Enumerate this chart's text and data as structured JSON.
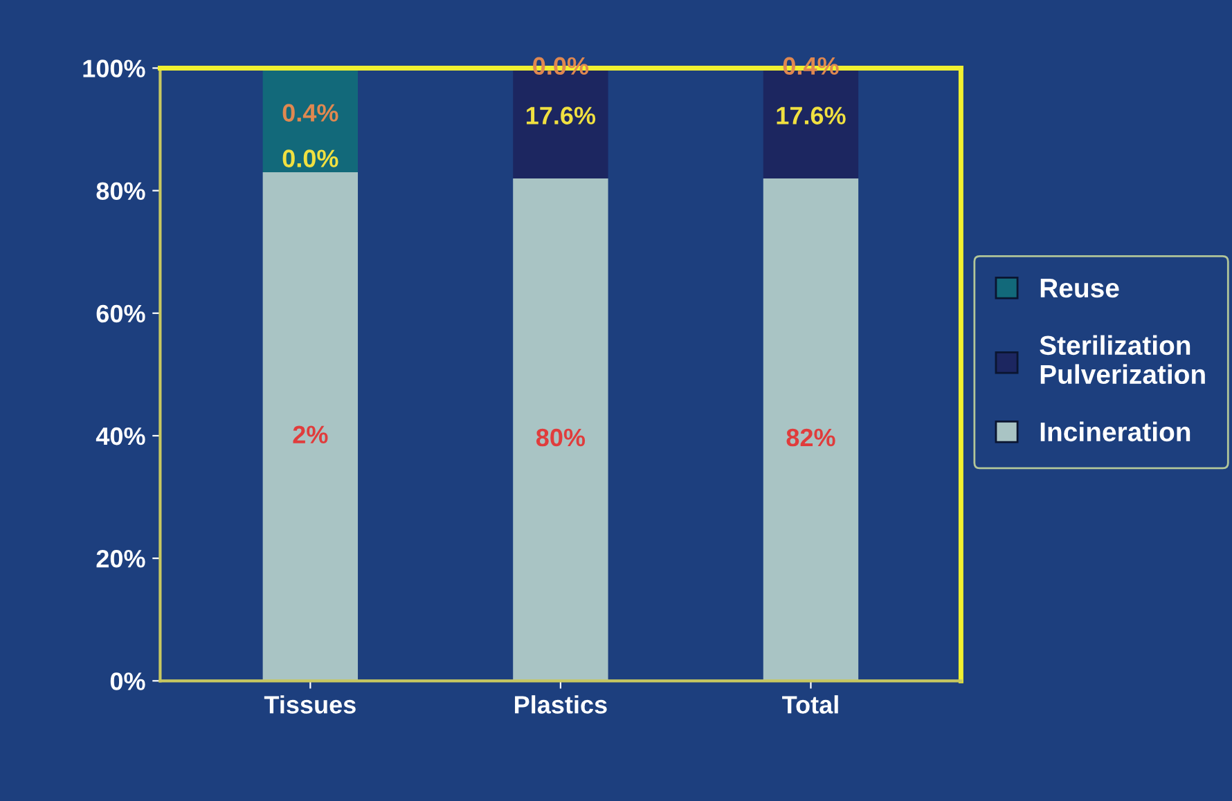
{
  "chart_data": {
    "type": "bar",
    "stacked": true,
    "categories": [
      "Tissues",
      "Plastics",
      "Total"
    ],
    "series": [
      {
        "name": "Incineration",
        "color": "#a9c4c4",
        "values": [
          83,
          82,
          82
        ]
      },
      {
        "name": "Sterilization\nPulverization",
        "color": "#1c2660",
        "values": [
          0,
          18,
          18
        ]
      },
      {
        "name": "Reuse",
        "color": "#12697a",
        "values": [
          17,
          0,
          0
        ]
      }
    ],
    "annotations": [
      "2%",
      "0.0%",
      "0.4%",
      "80%",
      "17.6%",
      "0.0%",
      "82%",
      "17.6%",
      "0.4%"
    ],
    "ylim": [
      0,
      100
    ],
    "yticks": [
      {
        "value": 0,
        "label": "0%"
      },
      {
        "value": 20,
        "label": "20%"
      },
      {
        "value": 40,
        "label": "40%"
      },
      {
        "value": 60,
        "label": "60%"
      },
      {
        "value": 80,
        "label": "80%"
      },
      {
        "value": 100,
        "label": "100%"
      }
    ],
    "legend": "right"
  }
}
